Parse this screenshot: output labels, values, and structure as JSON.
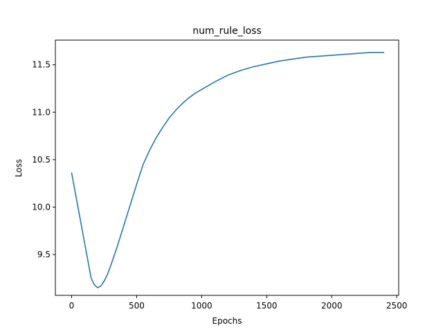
{
  "chart_data": {
    "type": "line",
    "title": "num_rule_loss",
    "xlabel": "Epochs",
    "ylabel": "Loss",
    "xlim": [
      -125,
      2515
    ],
    "ylim": [
      9.07,
      11.76
    ],
    "xticks": [
      0,
      500,
      1000,
      1500,
      2000,
      2500
    ],
    "xtick_labels": [
      "0",
      "500",
      "1000",
      "1500",
      "2000",
      "2500"
    ],
    "yticks": [
      9.5,
      10.0,
      10.5,
      11.0,
      11.5
    ],
    "ytick_labels": [
      "9.5",
      "10.0",
      "10.5",
      "11.0",
      "11.5"
    ],
    "grid": false,
    "legend": "none",
    "series": [
      {
        "color": "#1f77b4",
        "x": [
          0,
          50,
          100,
          150,
          175,
          200,
          225,
          250,
          275,
          300,
          350,
          400,
          450,
          500,
          550,
          600,
          650,
          700,
          750,
          800,
          850,
          900,
          950,
          1000,
          1100,
          1200,
          1300,
          1400,
          1500,
          1600,
          1700,
          1800,
          1900,
          2000,
          2100,
          2200,
          2300,
          2400
        ],
        "y": [
          10.36,
          9.99,
          9.62,
          9.25,
          9.18,
          9.15,
          9.17,
          9.22,
          9.29,
          9.38,
          9.58,
          9.8,
          10.02,
          10.24,
          10.45,
          10.6,
          10.73,
          10.84,
          10.94,
          11.02,
          11.09,
          11.15,
          11.2,
          11.24,
          11.32,
          11.39,
          11.44,
          11.48,
          11.51,
          11.54,
          11.56,
          11.58,
          11.59,
          11.6,
          11.61,
          11.62,
          11.63,
          11.63
        ]
      }
    ]
  }
}
